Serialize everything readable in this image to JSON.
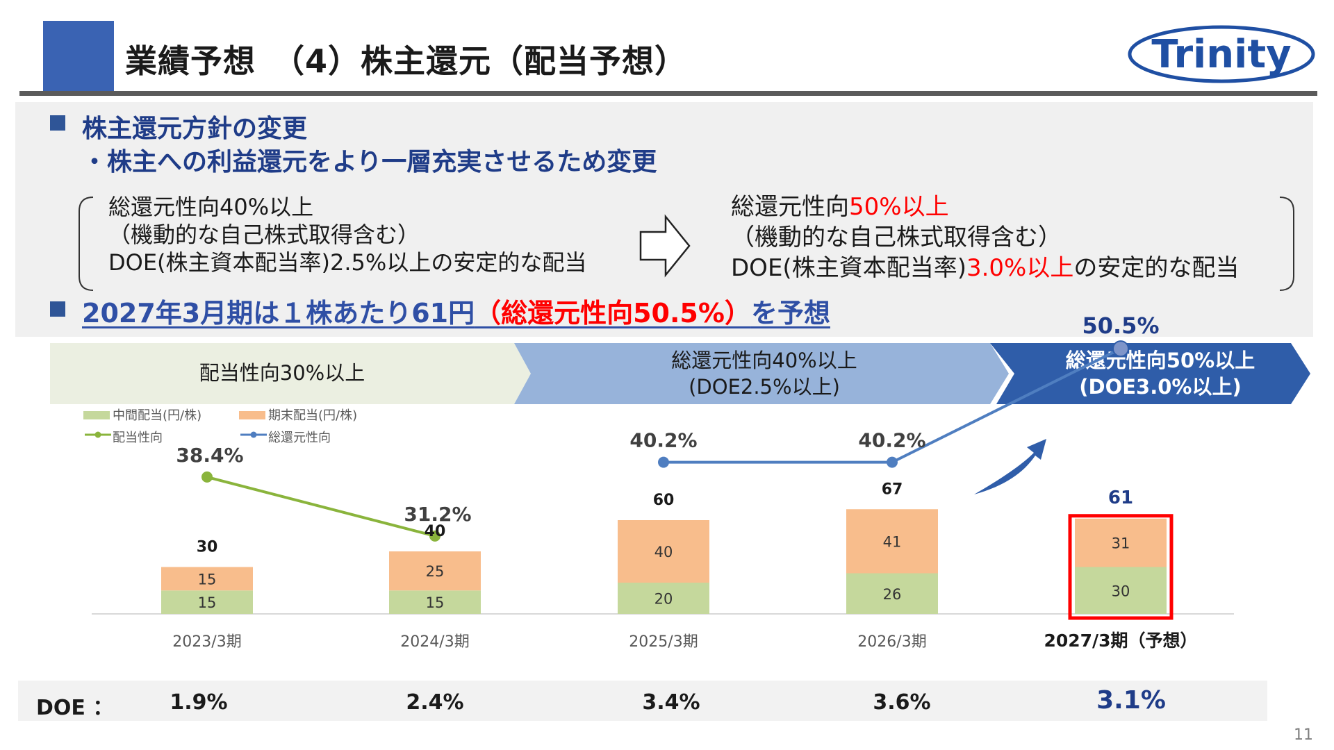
{
  "header": {
    "title": "業績予想　（4）株主還元（配当予想）",
    "logo_text": "Trinity"
  },
  "policy": {
    "heading": "株主還元方針の変更",
    "subheading": "・株主への利益還元をより一層充実させるため変更",
    "before": {
      "line1": "総還元性向40%以上",
      "line2": "（機動的な自己株式取得含む）",
      "line3": "DOE(株主資本配当率)2.5%以上の安定的な配当"
    },
    "after": {
      "line1_prefix": "総還元性向",
      "line1_red": "50%以上",
      "line2": "（機動的な自己株式取得含む）",
      "line3_prefix": "DOE(株主資本配当率)",
      "line3_red": "3.0%以上",
      "line3_suffix": "の安定的な配当"
    },
    "forecast_prefix": "2027年3月期は１株あたり61円",
    "forecast_red": "（総還元性向50.5%）",
    "forecast_suffix": "を予想"
  },
  "phases": [
    {
      "label_line1": "配当性向30%以上",
      "label_line2": "",
      "fill": "#ebefe1",
      "text_color": "#1a1a1a"
    },
    {
      "label_line1": "総還元性向40%以上",
      "label_line2": "(DOE2.5%以上)",
      "fill": "#97b3da",
      "text_color": "#1a1a1a"
    },
    {
      "label_line1": "総還元性向50%以上",
      "label_line2": "(DOE3.0%以上)",
      "fill": "#2f5da9",
      "text_color": "#ffffff"
    }
  ],
  "legend": {
    "interim": "中間配当(円/株)",
    "yearend": "期末配当(円/株)",
    "payout": "配当性向",
    "total_return": "総還元性向"
  },
  "colors": {
    "interim": "#c5d89c",
    "yearend": "#f8bd8c",
    "payout_line": "#8ab43c",
    "total_line": "#4f7ec0",
    "highlight": "#ff0000",
    "accent_blue": "#1f3c88"
  },
  "chart_data": {
    "type": "bar",
    "stacked": true,
    "categories": [
      "2023/3期",
      "2024/3期",
      "2025/3期",
      "2026/3期",
      "2027/3期（予想）"
    ],
    "series": [
      {
        "name": "中間配当(円/株)",
        "values": [
          15,
          15,
          20,
          26,
          30
        ]
      },
      {
        "name": "期末配当(円/株)",
        "values": [
          15,
          25,
          40,
          41,
          31
        ]
      }
    ],
    "totals": [
      30,
      40,
      60,
      67,
      61
    ],
    "ylim": [
      0,
      100
    ],
    "lines": [
      {
        "name": "配当性向",
        "values": [
          38.4,
          31.2,
          null,
          null,
          null
        ],
        "labels": [
          "38.4%",
          "31.2%",
          "",
          "",
          ""
        ]
      },
      {
        "name": "総還元性向",
        "values": [
          null,
          null,
          40.2,
          40.2,
          50.5
        ],
        "labels": [
          "",
          "",
          "40.2%",
          "40.2%",
          "50.5%"
        ]
      }
    ],
    "line_ylim": [
      0,
      60
    ],
    "highlight_category_index": 4,
    "grid": false,
    "legend_position": "top-left"
  },
  "doe": {
    "label": "DOE ：",
    "values": [
      "1.9%",
      "2.4%",
      "3.4%",
      "3.6%",
      "3.1%"
    ]
  },
  "page_number": "11"
}
